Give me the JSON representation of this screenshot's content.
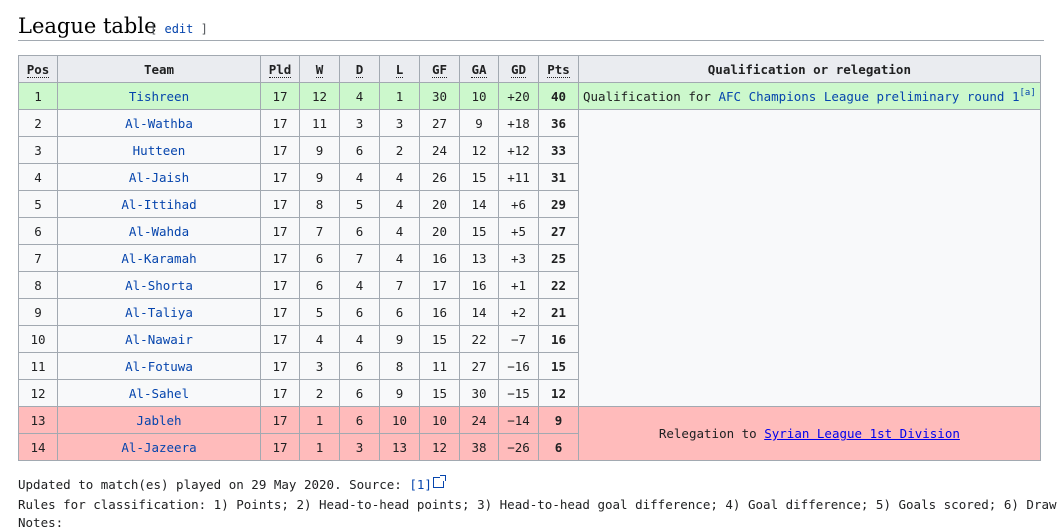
{
  "section": {
    "title": "League table",
    "edit_open": "[",
    "edit_label": "edit",
    "edit_close": "]"
  },
  "headers": {
    "pos": "Pos",
    "team": "Team",
    "pld": "Pld",
    "w": "W",
    "d": "D",
    "l": "L",
    "gf": "GF",
    "ga": "GA",
    "gd": "GD",
    "pts": "Pts",
    "qual": "Qualification or relegation"
  },
  "rows": [
    {
      "pos": "1",
      "team": "Tishreen",
      "pld": "17",
      "w": "12",
      "d": "4",
      "l": "1",
      "gf": "30",
      "ga": "10",
      "gd": "+20",
      "pts": "40"
    },
    {
      "pos": "2",
      "team": "Al-Wathba",
      "pld": "17",
      "w": "11",
      "d": "3",
      "l": "3",
      "gf": "27",
      "ga": "9",
      "gd": "+18",
      "pts": "36"
    },
    {
      "pos": "3",
      "team": "Hutteen",
      "pld": "17",
      "w": "9",
      "d": "6",
      "l": "2",
      "gf": "24",
      "ga": "12",
      "gd": "+12",
      "pts": "33"
    },
    {
      "pos": "4",
      "team": "Al-Jaish",
      "pld": "17",
      "w": "9",
      "d": "4",
      "l": "4",
      "gf": "26",
      "ga": "15",
      "gd": "+11",
      "pts": "31"
    },
    {
      "pos": "5",
      "team": "Al-Ittihad",
      "pld": "17",
      "w": "8",
      "d": "5",
      "l": "4",
      "gf": "20",
      "ga": "14",
      "gd": "+6",
      "pts": "29"
    },
    {
      "pos": "6",
      "team": "Al-Wahda",
      "pld": "17",
      "w": "7",
      "d": "6",
      "l": "4",
      "gf": "20",
      "ga": "15",
      "gd": "+5",
      "pts": "27"
    },
    {
      "pos": "7",
      "team": "Al-Karamah",
      "pld": "17",
      "w": "6",
      "d": "7",
      "l": "4",
      "gf": "16",
      "ga": "13",
      "gd": "+3",
      "pts": "25"
    },
    {
      "pos": "8",
      "team": "Al-Shorta",
      "pld": "17",
      "w": "6",
      "d": "4",
      "l": "7",
      "gf": "17",
      "ga": "16",
      "gd": "+1",
      "pts": "22"
    },
    {
      "pos": "9",
      "team": "Al-Taliya",
      "pld": "17",
      "w": "5",
      "d": "6",
      "l": "6",
      "gf": "16",
      "ga": "14",
      "gd": "+2",
      "pts": "21"
    },
    {
      "pos": "10",
      "team": "Al-Nawair",
      "pld": "17",
      "w": "4",
      "d": "4",
      "l": "9",
      "gf": "15",
      "ga": "22",
      "gd": "−7",
      "pts": "16"
    },
    {
      "pos": "11",
      "team": "Al-Fotuwa",
      "pld": "17",
      "w": "3",
      "d": "6",
      "l": "8",
      "gf": "11",
      "ga": "27",
      "gd": "−16",
      "pts": "15"
    },
    {
      "pos": "12",
      "team": "Al-Sahel",
      "pld": "17",
      "w": "2",
      "d": "6",
      "l": "9",
      "gf": "15",
      "ga": "30",
      "gd": "−15",
      "pts": "12"
    },
    {
      "pos": "13",
      "team": "Jableh",
      "pld": "17",
      "w": "1",
      "d": "6",
      "l": "10",
      "gf": "10",
      "ga": "24",
      "gd": "−14",
      "pts": "9"
    },
    {
      "pos": "14",
      "team": "Al-Jazeera",
      "pld": "17",
      "w": "1",
      "d": "3",
      "l": "13",
      "gf": "12",
      "ga": "38",
      "gd": "−26",
      "pts": "6"
    }
  ],
  "qualification": {
    "prefix": "Qualification for ",
    "link": "AFC Champions League preliminary round 1",
    "note": "[a]"
  },
  "relegation": {
    "prefix": "Relegation to ",
    "link": "Syrian League 1st Division"
  },
  "footer": {
    "updated_prefix": "Updated to match(es) played on 29 May 2020. Source: ",
    "source_link": "[1]",
    "rules": "Rules for classification: 1) Points; 2) Head-to-head points; 3) Head-to-head goal difference; 4) Goal difference; 5) Goals scored; 6) Draw",
    "notes": "Notes:"
  },
  "colors": {
    "promotion": "#ccf8cc",
    "relegation": "#ffbbbb",
    "link": "#0645ad",
    "header_bg": "#eaecf0",
    "border": "#a2a9b1"
  }
}
